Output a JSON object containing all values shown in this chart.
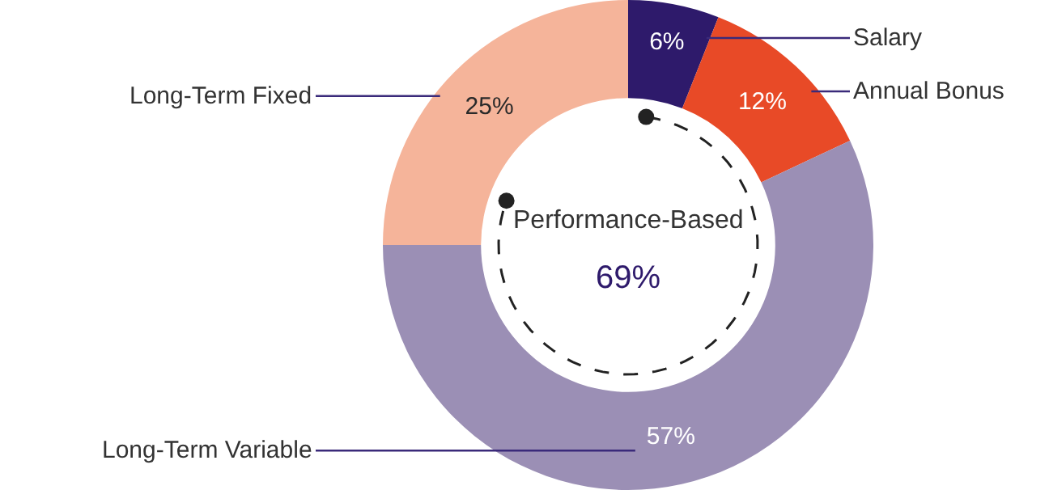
{
  "chart_data": {
    "type": "donut",
    "categories": [
      "Salary",
      "Annual Bonus",
      "Long-Term Variable",
      "Long-Term Fixed"
    ],
    "values": [
      6,
      12,
      57,
      25
    ],
    "colors": [
      "#2e1a6b",
      "#e84a27",
      "#9b8fb5",
      "#f5b49a"
    ],
    "value_labels": [
      "6%",
      "12%",
      "57%",
      "25%"
    ],
    "annotations": [
      "Performance-Based",
      "69%"
    ],
    "legend": false
  }
}
